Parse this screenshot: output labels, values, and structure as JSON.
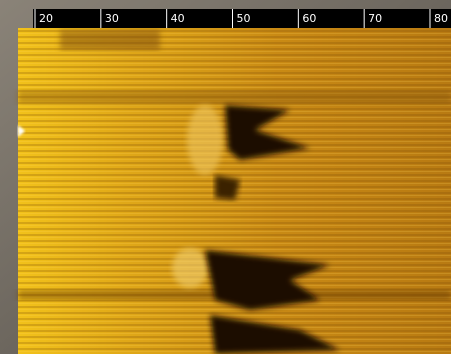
{
  "scale": {
    "ticks": [
      20,
      30,
      40,
      50,
      60,
      70,
      80
    ]
  }
}
